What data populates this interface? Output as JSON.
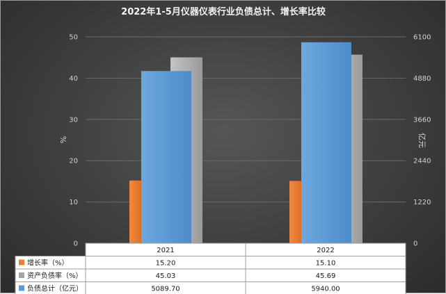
{
  "chart_data": {
    "type": "bar",
    "title": "2022年1-5月仪器仪表行业负债总计、增长率比较",
    "categories": [
      "2021",
      "2022"
    ],
    "y_left": {
      "label": "%",
      "ticks": [
        "0",
        "10",
        "20",
        "30",
        "40",
        "50"
      ],
      "range": [
        0,
        50
      ]
    },
    "y_right": {
      "label": "亿元",
      "ticks": [
        "0",
        "1220",
        "2440",
        "3660",
        "4880",
        "6100"
      ],
      "range": [
        0,
        6100
      ]
    },
    "series": [
      {
        "name": "增长率（%）",
        "axis": "left",
        "color": "#ed7d31",
        "values": [
          15.2,
          15.1
        ],
        "display": [
          "15.20",
          "15.10"
        ]
      },
      {
        "name": "资产负债率（%）",
        "axis": "left",
        "color": "#a5a5a5",
        "values": [
          45.03,
          45.69
        ],
        "display": [
          "45.03",
          "45.69"
        ]
      },
      {
        "name": "负债总计（亿元）",
        "axis": "right",
        "color": "#5b9bd5",
        "values": [
          5089.7,
          5940.0
        ],
        "display": [
          "5089.70",
          "5940.00"
        ]
      }
    ],
    "grid": true,
    "legend": "data-table-bottom"
  }
}
